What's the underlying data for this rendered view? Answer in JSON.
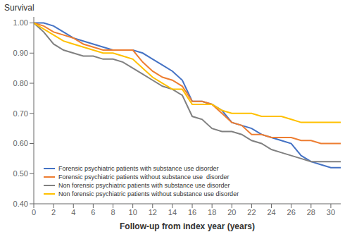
{
  "chart_data": {
    "type": "line",
    "xlabel": "Follow-up from index year (years)",
    "ylabel": "Survival",
    "x": [
      0,
      1,
      2,
      3,
      4,
      5,
      6,
      7,
      8,
      9,
      10,
      11,
      12,
      13,
      14,
      15,
      16,
      17,
      18,
      19,
      20,
      21,
      22,
      23,
      24,
      25,
      26,
      27,
      28,
      29,
      30,
      31
    ],
    "series": [
      {
        "name": "Forensic psychiatric patients with substance use disorder",
        "color": "#4472C4",
        "values": [
          1.0,
          1.0,
          0.99,
          0.97,
          0.95,
          0.94,
          0.93,
          0.92,
          0.91,
          0.91,
          0.91,
          0.9,
          0.88,
          0.86,
          0.84,
          0.81,
          0.74,
          0.74,
          0.73,
          0.71,
          0.67,
          0.66,
          0.65,
          0.63,
          0.62,
          0.61,
          0.6,
          0.56,
          0.54,
          0.53,
          0.52,
          0.52
        ]
      },
      {
        "name": "Forensic psychiatric patients without substance use  disorder",
        "color": "#ED7D31",
        "values": [
          1.0,
          0.99,
          0.97,
          0.96,
          0.95,
          0.93,
          0.92,
          0.91,
          0.91,
          0.91,
          0.91,
          0.87,
          0.84,
          0.82,
          0.81,
          0.79,
          0.74,
          0.74,
          0.73,
          0.7,
          0.67,
          0.66,
          0.63,
          0.63,
          0.62,
          0.62,
          0.62,
          0.61,
          0.61,
          0.6,
          0.6,
          0.6
        ]
      },
      {
        "name": "Non forensic psychiatric patients with substance use disorder",
        "color": "#808080",
        "values": [
          1.0,
          0.97,
          0.93,
          0.91,
          0.9,
          0.89,
          0.89,
          0.88,
          0.88,
          0.87,
          0.85,
          0.83,
          0.81,
          0.79,
          0.78,
          0.76,
          0.69,
          0.68,
          0.65,
          0.64,
          0.64,
          0.63,
          0.61,
          0.6,
          0.58,
          0.57,
          0.56,
          0.55,
          0.54,
          0.54,
          0.54,
          0.54
        ]
      },
      {
        "name": "Non forensic psychiatric patients without substance use disorder",
        "color": "#FFC000",
        "values": [
          1.0,
          0.98,
          0.96,
          0.94,
          0.93,
          0.92,
          0.91,
          0.9,
          0.9,
          0.89,
          0.88,
          0.85,
          0.82,
          0.8,
          0.78,
          0.78,
          0.73,
          0.73,
          0.73,
          0.71,
          0.7,
          0.7,
          0.7,
          0.69,
          0.69,
          0.69,
          0.68,
          0.67,
          0.67,
          0.67,
          0.67,
          0.67
        ]
      }
    ],
    "xlim": [
      0,
      31
    ],
    "ylim": [
      0.4,
      1.02
    ],
    "xticks": [
      0,
      2,
      4,
      6,
      8,
      10,
      12,
      14,
      16,
      18,
      20,
      22,
      24,
      26,
      28,
      30
    ],
    "yticks": [
      {
        "value": 0.4,
        "label": "0.40"
      },
      {
        "value": 0.5,
        "label": "0.50"
      },
      {
        "value": 0.6,
        "label": "0.60"
      },
      {
        "value": 0.7,
        "label": "0.70"
      },
      {
        "value": 0.8,
        "label": "0.80"
      },
      {
        "value": 0.9,
        "label": "0.90"
      },
      {
        "value": 1.0,
        "label": "1.00"
      }
    ],
    "grid": false,
    "legend": "lower left"
  }
}
